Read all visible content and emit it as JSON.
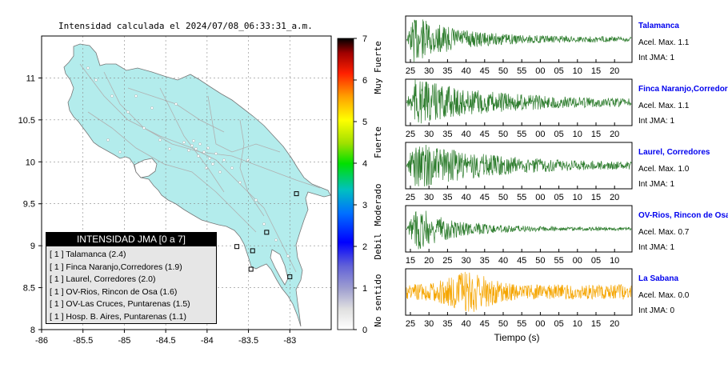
{
  "map": {
    "title": "Intensidad calculada el 2024/07/08_06:33:31_a.m.",
    "x_ticks": [
      "-86",
      "-85.5",
      "-85",
      "-84.5",
      "-84",
      "-83.5",
      "-83"
    ],
    "y_ticks": [
      "11",
      "10.5",
      "10",
      "9.5",
      "9",
      "8.5",
      "8"
    ],
    "land_color": "#b3ecec",
    "station_markers": [
      {
        "lon": -82.92,
        "lat": 9.62
      },
      {
        "lon": -83.28,
        "lat": 9.16
      },
      {
        "lon": -83.64,
        "lat": 8.99
      },
      {
        "lon": -83.45,
        "lat": 8.94
      },
      {
        "lon": -83.47,
        "lat": 8.72
      },
      {
        "lon": -83.0,
        "lat": 8.63
      }
    ]
  },
  "colorbar": {
    "ticks": [
      "0",
      "1",
      "2",
      "3",
      "4",
      "5",
      "6",
      "7"
    ],
    "labels": [
      "No sentido",
      "Debil",
      "Moderado",
      "Fuerte",
      "Muy Fuerte"
    ]
  },
  "legend": {
    "title": "INTENSIDAD JMA [0 a 7]",
    "items": [
      "[ 1 ]  Talamanca (2.4)",
      "[ 1 ]  Finca Naranjo,Corredores (1.9)",
      "[ 1 ]  Laurel, Corredores (2.0)",
      "[ 1 ]  OV-Rios, Rincon de Osa (1.6)",
      "[ 1 ]  OV-Las Cruces, Puntarenas (1.5)",
      "[ 1 ]  Hosp. B. Aires, Puntarenas (1.1)"
    ]
  },
  "waveforms": {
    "xlabel": "Tiempo (s)",
    "panels": [
      {
        "name": "Talamanca",
        "acel": "Acel. Max. 1.1",
        "int": "Int JMA: 1",
        "color": "#2e7d2e",
        "ticks": [
          "25",
          "30",
          "35",
          "40",
          "45",
          "50",
          "55",
          "00",
          "05",
          "10",
          "15",
          "20"
        ]
      },
      {
        "name": "Finca Naranjo,Corredores",
        "acel": "Acel. Max. 1.1",
        "int": "Int JMA: 1",
        "color": "#2e7d2e",
        "ticks": [
          "25",
          "30",
          "35",
          "40",
          "45",
          "50",
          "55",
          "00",
          "05",
          "10",
          "15",
          "20"
        ]
      },
      {
        "name": "Laurel, Corredores",
        "acel": "Acel. Max. 1.0",
        "int": "Int JMA: 1",
        "color": "#2e7d2e",
        "ticks": [
          "25",
          "30",
          "35",
          "40",
          "45",
          "50",
          "55",
          "00",
          "05",
          "10",
          "15",
          "20"
        ]
      },
      {
        "name": "OV-Rios, Rincon de Osa",
        "acel": "Acel. Max. 0.7",
        "int": "Int JMA: 1",
        "color": "#2e7d2e",
        "ticks": [
          "15",
          "20",
          "25",
          "30",
          "35",
          "40",
          "45",
          "50",
          "55",
          "00",
          "05",
          "10"
        ]
      },
      {
        "name": "La Sabana",
        "acel": "Acel. Max. 0.0",
        "int": "Int JMA: 0",
        "color": "#f5a500",
        "ticks": [
          "25",
          "30",
          "35",
          "40",
          "45",
          "50",
          "55",
          "00",
          "05",
          "10",
          "15",
          "20"
        ]
      }
    ]
  }
}
